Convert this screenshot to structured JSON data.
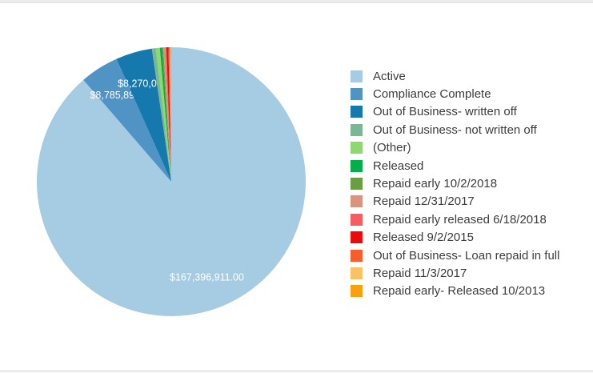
{
  "page": {
    "background_color": "#ffffff",
    "top_strip_color": "#ececec",
    "divider_color": "#d8d8d8",
    "legend_text_color": "#3c3c3c",
    "pie_label_color": "#ffffff"
  },
  "chart_data": {
    "type": "pie",
    "title": "",
    "legend_position": "right",
    "data_labels_visible": [
      "$167,396,911.00",
      "$8,785,890.",
      "$8,270,004"
    ],
    "series": [
      {
        "name": "Active",
        "value": 167396911,
        "color": "#a5cce2",
        "label": "$167,396,911.00"
      },
      {
        "name": "Compliance Complete",
        "value": 8785890,
        "color": "#4f94c5",
        "label": "$8,785,890."
      },
      {
        "name": "Out of Business- written off",
        "value": 8270004,
        "color": "#1579ae",
        "label": "$8,270,004"
      },
      {
        "name": "Out of Business- not written off",
        "value": 890000,
        "color": "#79b795",
        "label": ""
      },
      {
        "name": "(Other)",
        "value": 890000,
        "color": "#8fd76f",
        "label": ""
      },
      {
        "name": "Released",
        "value": 525000,
        "color": "#04af4b",
        "label": ""
      },
      {
        "name": "Repaid early 10/2/2018",
        "value": 260000,
        "color": "#6b9e42",
        "label": ""
      },
      {
        "name": "Repaid 12/31/2017",
        "value": 445000,
        "color": "#d9947f",
        "label": ""
      },
      {
        "name": "Repaid early released 6/18/2018",
        "value": 260000,
        "color": "#f75d5d",
        "label": ""
      },
      {
        "name": "Released 9/2/2015",
        "value": 445000,
        "color": "#ec0b0b",
        "label": ""
      },
      {
        "name": "Out of Business- Loan repaid in full",
        "value": 260000,
        "color": "#f65f2d",
        "label": ""
      },
      {
        "name": "Repaid 11/3/2017",
        "value": 185000,
        "color": "#fbc265",
        "label": ""
      },
      {
        "name": "Repaid early- Released 10/2013",
        "value": 185000,
        "color": "#f9a00e",
        "label": ""
      }
    ]
  }
}
